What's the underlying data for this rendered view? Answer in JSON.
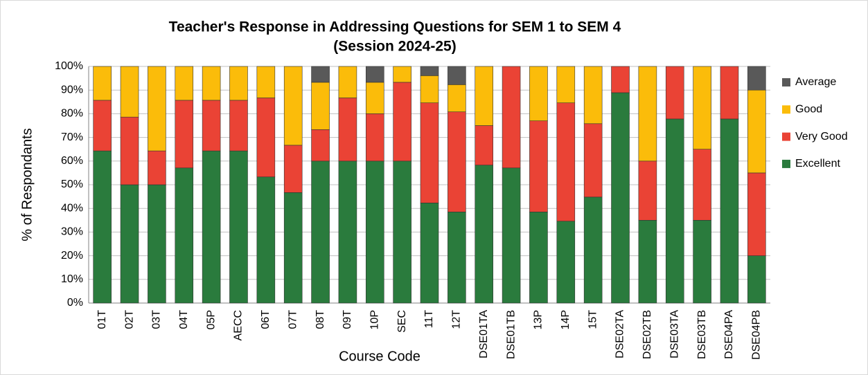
{
  "chart_data": {
    "type": "stacked_bar",
    "title": "Teacher's Response in Addressing Questions for  SEM 1 to SEM 4",
    "subtitle": "(Session 2024-25)",
    "x_label": "Course Code",
    "y_label": "% of Respondants",
    "categories": [
      "01T",
      "02T",
      "03T",
      "04T",
      "05P",
      "AECC",
      "06T",
      "07T",
      "08T",
      "09T",
      "10P",
      "SEC",
      "11T",
      "12T",
      "DSE01TA",
      "DSE01TB",
      "13P",
      "14P",
      "15T",
      "DSE02TA",
      "DSE02TB",
      "DSE03TA",
      "DSE03TB",
      "DSE04PA",
      "DSE04PB"
    ],
    "series": [
      {
        "name": "Excellent",
        "color": "#2a7b3d",
        "values": [
          64.3,
          50,
          50,
          57.1,
          64.3,
          64.3,
          53.3,
          46.7,
          60,
          60,
          60,
          60,
          42.3,
          38.5,
          58.3,
          57.1,
          38.5,
          34.6,
          44.8,
          88.9,
          35,
          77.8,
          35,
          77.8,
          20
        ]
      },
      {
        "name": "Very Good",
        "color": "#ea4335",
        "values": [
          21.4,
          28.6,
          14.3,
          28.6,
          21.4,
          21.4,
          33.4,
          20,
          13.3,
          26.7,
          20,
          33.3,
          42.3,
          42.3,
          16.7,
          42.9,
          38.5,
          50,
          31,
          11.1,
          25,
          22.2,
          30,
          22.2,
          35
        ]
      },
      {
        "name": "Good",
        "color": "#fbbc0a",
        "values": [
          14.3,
          21.4,
          35.7,
          14.3,
          14.3,
          14.3,
          13.3,
          33.3,
          20,
          13.3,
          13.3,
          6.7,
          11.5,
          11.5,
          25,
          0,
          23,
          15.4,
          24.2,
          0,
          40,
          0,
          35,
          0,
          35
        ]
      },
      {
        "name": "Average",
        "color": "#595959",
        "values": [
          0,
          0,
          0,
          0,
          0,
          0,
          0,
          0,
          6.7,
          0,
          6.7,
          0,
          3.9,
          7.7,
          0,
          0,
          0,
          0,
          0,
          0,
          0,
          0,
          0,
          0,
          10
        ]
      }
    ],
    "ylim": [
      0,
      100
    ],
    "yticks": [
      {
        "value": 0,
        "label": "0%"
      },
      {
        "value": 10,
        "label": "10%"
      },
      {
        "value": 20,
        "label": "20%"
      },
      {
        "value": 30,
        "label": "30%"
      },
      {
        "value": 40,
        "label": "40%"
      },
      {
        "value": 50,
        "label": "50%"
      },
      {
        "value": 60,
        "label": "60%"
      },
      {
        "value": 70,
        "label": "70%"
      },
      {
        "value": 80,
        "label": "80%"
      },
      {
        "value": 90,
        "label": "90%"
      },
      {
        "value": 100,
        "label": "100%"
      }
    ],
    "grid": true,
    "legend": "right"
  }
}
